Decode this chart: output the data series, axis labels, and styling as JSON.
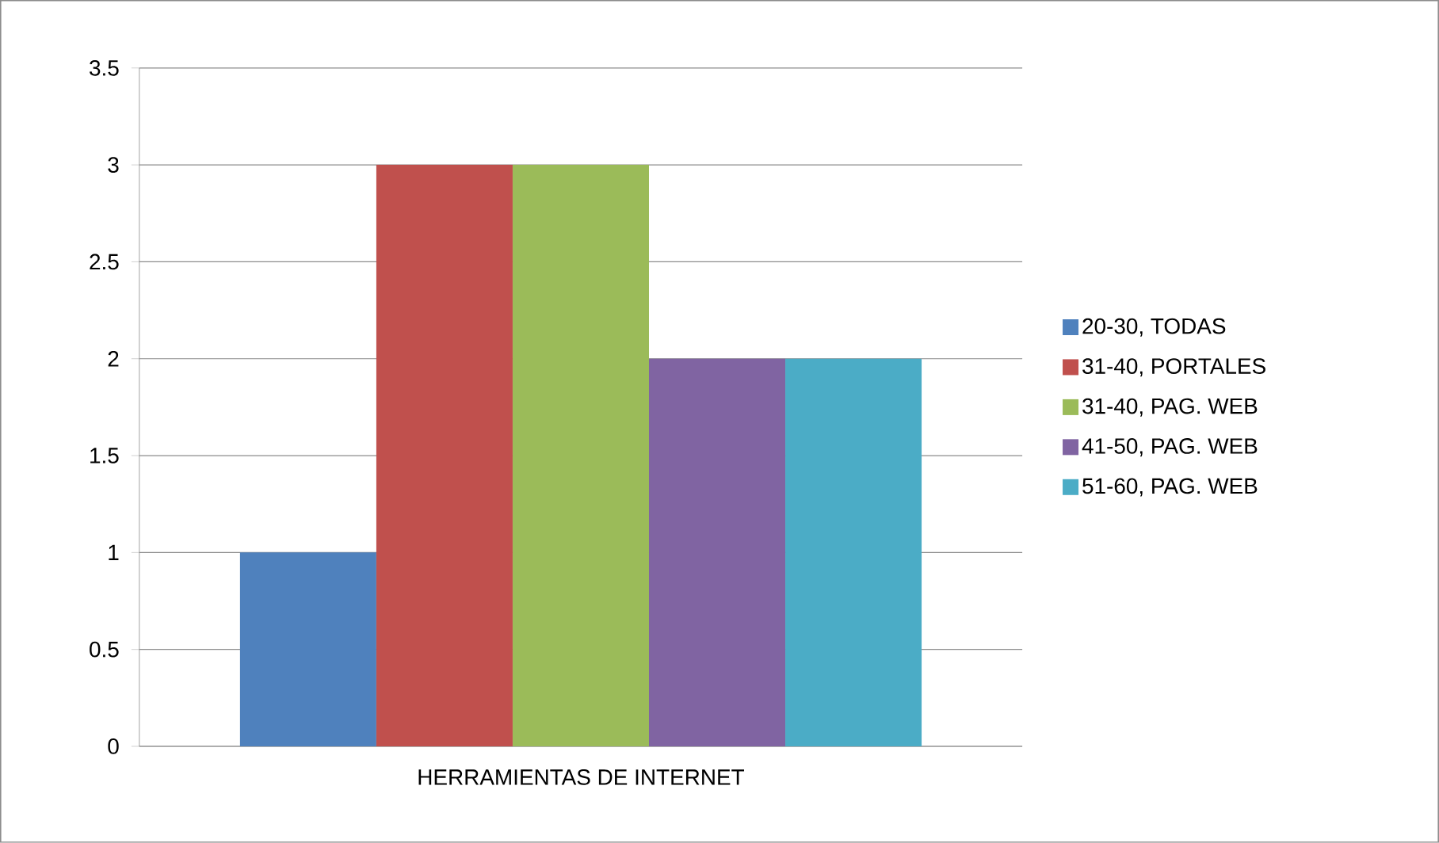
{
  "chart_data": {
    "type": "bar",
    "categories": [
      "HERRAMIENTAS DE INTERNET"
    ],
    "series": [
      {
        "name": "20-30, TODAS",
        "color": "#4f81bd",
        "values": [
          1
        ]
      },
      {
        "name": "31-40, PORTALES",
        "color": "#c0504d",
        "values": [
          3
        ]
      },
      {
        "name": "31-40, PAG. WEB",
        "color": "#9bbb59",
        "values": [
          3
        ]
      },
      {
        "name": "41-50, PAG. WEB",
        "color": "#8064a2",
        "values": [
          2
        ]
      },
      {
        "name": "51-60, PAG. WEB",
        "color": "#4bacc6",
        "values": [
          2
        ]
      }
    ],
    "ylim": [
      0,
      3.5
    ],
    "yticks": [
      0,
      0.5,
      1,
      1.5,
      2,
      2.5,
      3,
      3.5
    ],
    "grid": "y",
    "legend": "right"
  }
}
